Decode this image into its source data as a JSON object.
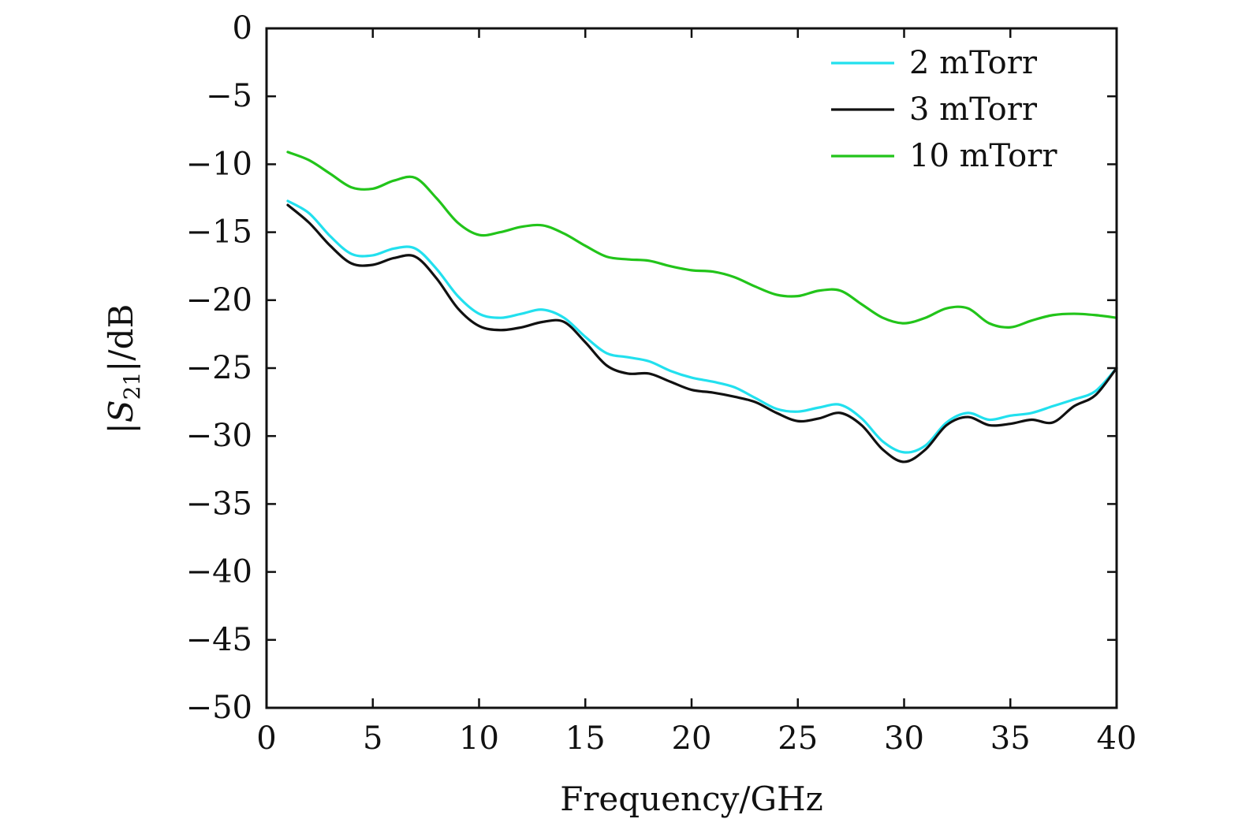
{
  "chart_data": {
    "type": "line",
    "title": "",
    "xlabel": "Frequency/GHz",
    "ylabel": "|S21|/dB",
    "ylabel_main": "|S",
    "ylabel_sub": "21",
    "ylabel_rest": "|/dB",
    "xlim": [
      0,
      40
    ],
    "ylim": [
      -50,
      0
    ],
    "xticks": [
      0,
      5,
      10,
      15,
      20,
      25,
      30,
      35,
      40
    ],
    "yticks": [
      0,
      -5,
      -10,
      -15,
      -20,
      -25,
      -30,
      -35,
      -40,
      -45,
      -50
    ],
    "xtick_labels": [
      "0",
      "5",
      "10",
      "15",
      "20",
      "25",
      "30",
      "35",
      "40"
    ],
    "ytick_labels": [
      "0",
      "−5",
      "−10",
      "−15",
      "−20",
      "−25",
      "−30",
      "−35",
      "−40",
      "−45",
      "−50"
    ],
    "grid": false,
    "legend_position": "top-right",
    "series": [
      {
        "name": "2 mTorr",
        "color": "#22e0ee",
        "x": [
          1,
          2,
          3,
          4,
          5,
          6,
          7,
          8,
          9,
          10,
          11,
          12,
          13,
          14,
          15,
          16,
          17,
          18,
          19,
          20,
          21,
          22,
          23,
          24,
          25,
          26,
          27,
          28,
          29,
          30,
          31,
          32,
          33,
          34,
          35,
          36,
          37,
          38,
          39,
          40
        ],
        "y": [
          -12.7,
          -13.6,
          -15.3,
          -16.6,
          -16.7,
          -16.2,
          -16.2,
          -17.7,
          -19.7,
          -21.0,
          -21.3,
          -21.0,
          -20.7,
          -21.3,
          -22.7,
          -23.9,
          -24.2,
          -24.5,
          -25.2,
          -25.7,
          -26.0,
          -26.4,
          -27.2,
          -28.0,
          -28.2,
          -27.9,
          -27.7,
          -28.7,
          -30.4,
          -31.2,
          -30.7,
          -29.0,
          -28.3,
          -28.8,
          -28.5,
          -28.3,
          -27.8,
          -27.3,
          -26.7,
          -25.0
        ]
      },
      {
        "name": "3 mTorr",
        "color": "#111111",
        "x": [
          1,
          2,
          3,
          4,
          5,
          6,
          7,
          8,
          9,
          10,
          11,
          12,
          13,
          14,
          15,
          16,
          17,
          18,
          19,
          20,
          21,
          22,
          23,
          24,
          25,
          26,
          27,
          28,
          29,
          30,
          31,
          32,
          33,
          34,
          35,
          36,
          37,
          38,
          39,
          40
        ],
        "y": [
          -13.0,
          -14.3,
          -16.0,
          -17.3,
          -17.4,
          -16.9,
          -16.8,
          -18.4,
          -20.6,
          -21.9,
          -22.2,
          -22.0,
          -21.6,
          -21.6,
          -23.1,
          -24.8,
          -25.4,
          -25.4,
          -26.0,
          -26.6,
          -26.8,
          -27.1,
          -27.5,
          -28.3,
          -28.9,
          -28.7,
          -28.3,
          -29.2,
          -31.0,
          -31.9,
          -31.0,
          -29.2,
          -28.6,
          -29.2,
          -29.1,
          -28.8,
          -29.0,
          -27.8,
          -27.0,
          -25.0
        ]
      },
      {
        "name": "10 mTorr",
        "color": "#22c41a",
        "x": [
          1,
          2,
          3,
          4,
          5,
          6,
          7,
          8,
          9,
          10,
          11,
          12,
          13,
          14,
          15,
          16,
          17,
          18,
          19,
          20,
          21,
          22,
          23,
          24,
          25,
          26,
          27,
          28,
          29,
          30,
          31,
          32,
          33,
          34,
          35,
          36,
          37,
          38,
          39,
          40
        ],
        "y": [
          -9.1,
          -9.7,
          -10.7,
          -11.7,
          -11.8,
          -11.2,
          -11.0,
          -12.5,
          -14.3,
          -15.2,
          -15.0,
          -14.6,
          -14.5,
          -15.1,
          -16.0,
          -16.8,
          -17.0,
          -17.1,
          -17.5,
          -17.8,
          -17.9,
          -18.3,
          -19.0,
          -19.6,
          -19.7,
          -19.3,
          -19.3,
          -20.3,
          -21.3,
          -21.7,
          -21.3,
          -20.6,
          -20.6,
          -21.7,
          -22.0,
          -21.5,
          -21.1,
          -21.0,
          -21.1,
          -21.3
        ]
      }
    ]
  }
}
